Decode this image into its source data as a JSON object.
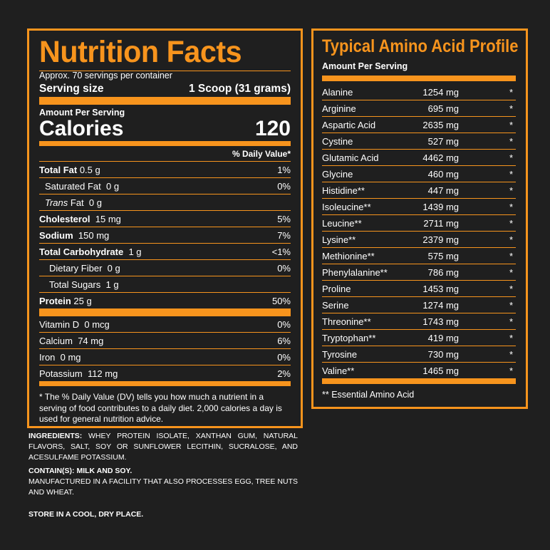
{
  "nutrition": {
    "title": "Nutrition Facts",
    "servings_note": "Approx. 70 servings per container",
    "serving_size_label": "Serving size",
    "serving_size_value": "1 Scoop (31 grams)",
    "amount_per_serving": "Amount Per Serving",
    "calories_label": "Calories",
    "calories_value": "120",
    "daily_value_header": "% Daily Value*",
    "rows": [
      {
        "name": "Total Fat",
        "amount": "0.5 g",
        "dv": "1%"
      },
      {
        "name": "Saturated Fat",
        "amount": "0 g",
        "dv": "0%"
      },
      {
        "name": "Trans",
        "name_suffix": "Fat",
        "amount": "0 g",
        "dv": ""
      },
      {
        "name": "Cholesterol",
        "amount": "15 mg",
        "dv": "5%"
      },
      {
        "name": "Sodium",
        "amount": "150 mg",
        "dv": "7%"
      },
      {
        "name": "Total Carbohydrate",
        "amount": "1 g",
        "dv": "<1%"
      },
      {
        "name": "Dietary Fiber",
        "amount": "0 g",
        "dv": "0%"
      },
      {
        "name": "Total Sugars",
        "amount": "1 g",
        "dv": ""
      },
      {
        "name": "Protein",
        "amount": "25 g",
        "dv": "50%"
      }
    ],
    "vitamins": [
      {
        "name": "Vitamin D",
        "amount": "0 mcg",
        "dv": "0%"
      },
      {
        "name": "Calcium",
        "amount": "74 mg",
        "dv": "6%"
      },
      {
        "name": "Iron",
        "amount": "0 mg",
        "dv": "0%"
      },
      {
        "name": "Potassium",
        "amount": "112 mg",
        "dv": "2%"
      }
    ],
    "footnote": "* The % Daily Value (DV) tells you how much a nutrient in a serving of food contributes to a daily diet. 2,000 calories a day is used for general nutrition advice."
  },
  "ingredients": {
    "label": "INGREDIENTS:",
    "text": "WHEY PROTEIN ISOLATE, XANTHAN GUM, NATURAL FLAVORS, SALT, SOY OR SUNFLOWER LECITHIN, SUCRALOSE, AND ACESULFAME POTASSIUM.",
    "contains": "CONTAIN(S): MILK AND SOY.",
    "facility": "MANUFACTURED IN A FACILITY THAT ALSO PROCESSES EGG, TREE NUTS AND WHEAT.",
    "storage": "STORE IN A COOL, DRY PLACE."
  },
  "amino": {
    "title": "Typical Amino Acid Profile",
    "amount_per_serving": "Amount Per Serving",
    "rows": [
      {
        "name": "Alanine",
        "value": "1254 mg",
        "mark": "*"
      },
      {
        "name": "Arginine",
        "value": "695 mg",
        "mark": "*"
      },
      {
        "name": "Aspartic Acid",
        "value": "2635 mg",
        "mark": "*"
      },
      {
        "name": "Cystine",
        "value": "527 mg",
        "mark": "*"
      },
      {
        "name": "Glutamic Acid",
        "value": "4462 mg",
        "mark": "*"
      },
      {
        "name": "Glycine",
        "value": "460 mg",
        "mark": "*"
      },
      {
        "name": "Histidine**",
        "value": "447 mg",
        "mark": "*"
      },
      {
        "name": "Isoleucine**",
        "value": "1439 mg",
        "mark": "*"
      },
      {
        "name": "Leucine**",
        "value": "2711 mg",
        "mark": "*"
      },
      {
        "name": "Lysine**",
        "value": "2379 mg",
        "mark": "*"
      },
      {
        "name": "Methionine**",
        "value": "575 mg",
        "mark": "*"
      },
      {
        "name": "Phenylalanine**",
        "value": "786 mg",
        "mark": "*"
      },
      {
        "name": "Proline",
        "value": "1453 mg",
        "mark": "*"
      },
      {
        "name": "Serine",
        "value": "1274 mg",
        "mark": "*"
      },
      {
        "name": "Threonine**",
        "value": "1743 mg",
        "mark": "*"
      },
      {
        "name": "Tryptophan**",
        "value": "419 mg",
        "mark": "*"
      },
      {
        "name": "Tyrosine",
        "value": "730 mg",
        "mark": "*"
      },
      {
        "name": "Valine**",
        "value": "1465 mg",
        "mark": "*"
      }
    ],
    "footnote": "** Essential Amino Acid"
  },
  "colors": {
    "accent": "#f7941d",
    "background": "#1f1f1f",
    "text": "#ffffff"
  }
}
